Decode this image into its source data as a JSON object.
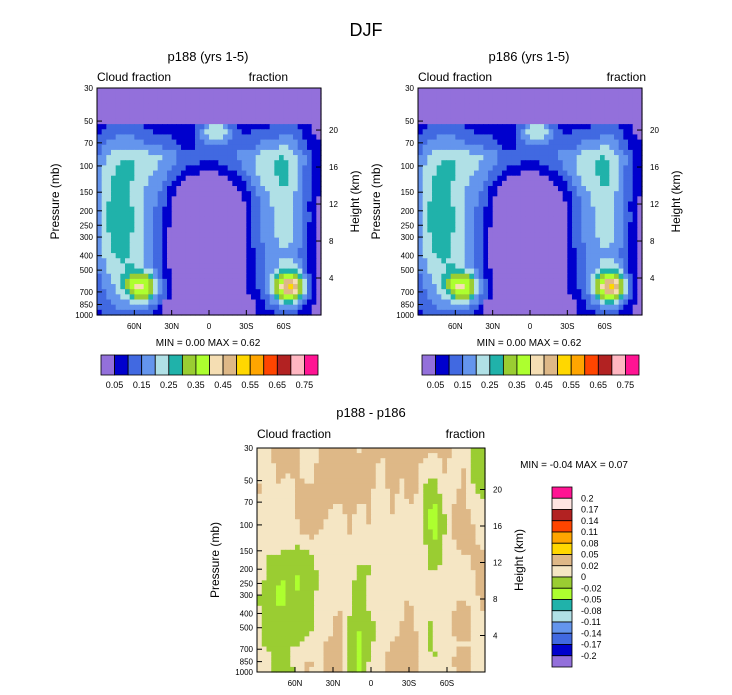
{
  "page": {
    "title": "DJF"
  },
  "colors": {
    "frame": "#000000",
    "cmap_abs": [
      "#9370DB",
      "#0000CD",
      "#4169E1",
      "#6495ED",
      "#B0E0E6",
      "#20B2AA",
      "#9ACD32",
      "#ADFF2F",
      "#F5DEB3",
      "#DEB887",
      "#FFD700",
      "#FFA500",
      "#FF4500",
      "#B22222",
      "#FFB6C1",
      "#FF1493"
    ],
    "cmap_diff": [
      "#9370DB",
      "#0000CD",
      "#4169E1",
      "#6495ED",
      "#B0E0E6",
      "#20B2AA",
      "#ADFF2F",
      "#9ACD32",
      "#F5E6C4",
      "#DEB887",
      "#FFD700",
      "#FFA500",
      "#FF4500",
      "#B22222",
      "#FFE4E1",
      "#FF1493"
    ]
  },
  "chart_data": [
    {
      "id": "p188",
      "type": "heatmap",
      "title": "p188 (yrs 1-5)",
      "left_label": "Cloud fraction",
      "right_label": "fraction",
      "ylabel": "Pressure (mb)",
      "y2label": "Height (km)",
      "x_ticks": [
        "60N",
        "30N",
        "0",
        "30S",
        "60S"
      ],
      "x_tick_values": [
        60,
        30,
        0,
        -30,
        -60
      ],
      "xlim": [
        90,
        -90
      ],
      "y_ticks": [
        "30",
        "50",
        "70",
        "100",
        "150",
        "200",
        "250",
        "300",
        "400",
        "500",
        "700",
        "850",
        "1000"
      ],
      "y_tick_values": [
        30,
        50,
        70,
        100,
        150,
        200,
        250,
        300,
        400,
        500,
        700,
        850,
        1000
      ],
      "ylim": [
        30,
        1000
      ],
      "y2_ticks": [
        "20",
        "16",
        "12",
        "8",
        "4"
      ],
      "y2_tick_values": [
        20,
        16,
        12,
        8,
        4
      ],
      "min_label": "MIN =",
      "min_value": "0.00",
      "max_label": "MAX =",
      "max_value": "0.62",
      "levels": [
        "0.05",
        "0.15",
        "0.25",
        "0.35",
        "0.45",
        "0.55",
        "0.65",
        "0.75"
      ],
      "level_values": [
        0.05,
        0.1,
        0.15,
        0.2,
        0.25,
        0.3,
        0.35,
        0.4,
        0.45,
        0.5,
        0.55,
        0.6,
        0.65,
        0.7,
        0.75
      ]
    },
    {
      "id": "p186",
      "type": "heatmap",
      "title": "p186 (yrs 1-5)",
      "left_label": "Cloud fraction",
      "right_label": "fraction",
      "ylabel": "Pressure (mb)",
      "y2label": "Height (km)",
      "x_ticks": [
        "60N",
        "30N",
        "0",
        "30S",
        "60S"
      ],
      "x_tick_values": [
        60,
        30,
        0,
        -30,
        -60
      ],
      "xlim": [
        90,
        -90
      ],
      "y_ticks": [
        "30",
        "50",
        "70",
        "100",
        "150",
        "200",
        "250",
        "300",
        "400",
        "500",
        "700",
        "850",
        "1000"
      ],
      "y_tick_values": [
        30,
        50,
        70,
        100,
        150,
        200,
        250,
        300,
        400,
        500,
        700,
        850,
        1000
      ],
      "ylim": [
        30,
        1000
      ],
      "y2_ticks": [
        "20",
        "16",
        "12",
        "8",
        "4"
      ],
      "y2_tick_values": [
        20,
        16,
        12,
        8,
        4
      ],
      "min_label": "MIN =",
      "min_value": "0.00",
      "max_label": "MAX =",
      "max_value": "0.62",
      "levels": [
        "0.05",
        "0.15",
        "0.25",
        "0.35",
        "0.45",
        "0.55",
        "0.65",
        "0.75"
      ],
      "level_values": [
        0.05,
        0.1,
        0.15,
        0.2,
        0.25,
        0.3,
        0.35,
        0.4,
        0.45,
        0.5,
        0.55,
        0.6,
        0.65,
        0.7,
        0.75
      ]
    },
    {
      "id": "diff",
      "type": "heatmap",
      "title": "p188 - p186",
      "left_label": "Cloud fraction",
      "right_label": "fraction",
      "ylabel": "Pressure (mb)",
      "y2label": "Height (km)",
      "x_ticks": [
        "60N",
        "30N",
        "0",
        "30S",
        "60S"
      ],
      "x_tick_values": [
        60,
        30,
        0,
        -30,
        -60
      ],
      "xlim": [
        90,
        -90
      ],
      "y_ticks": [
        "30",
        "50",
        "70",
        "100",
        "150",
        "200",
        "250",
        "300",
        "400",
        "500",
        "700",
        "850",
        "1000"
      ],
      "y_tick_values": [
        30,
        50,
        70,
        100,
        150,
        200,
        250,
        300,
        400,
        500,
        700,
        850,
        1000
      ],
      "ylim": [
        30,
        1000
      ],
      "y2_ticks": [
        "20",
        "16",
        "12",
        "8",
        "4"
      ],
      "y2_tick_values": [
        20,
        16,
        12,
        8,
        4
      ],
      "min_label": "MIN =",
      "min_value": "-0.04",
      "max_label": "MAX =",
      "max_value": "0.07",
      "levels": [
        "0.2",
        "0.17",
        "0.14",
        "0.11",
        "0.08",
        "0.05",
        "0.02",
        "0",
        "-0.02",
        "-0.05",
        "-0.08",
        "-0.11",
        "-0.14",
        "-0.17",
        "-0.2"
      ],
      "level_values": [
        0.2,
        0.17,
        0.14,
        0.11,
        0.08,
        0.05,
        0.02,
        0,
        -0.02,
        -0.05,
        -0.08,
        -0.11,
        -0.14,
        -0.17,
        -0.2
      ]
    }
  ]
}
